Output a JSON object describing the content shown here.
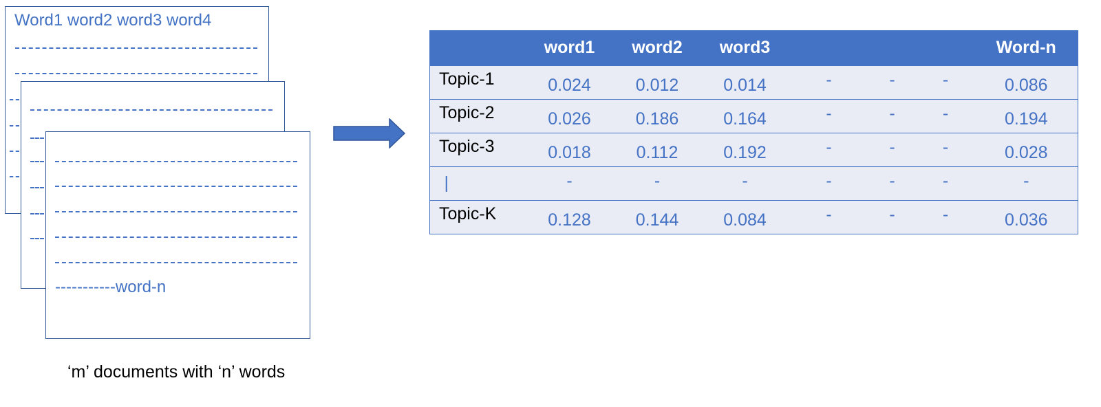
{
  "documents": {
    "first_line": "Word1 word2 word3 word4",
    "last_line_suffix": "-----------word-n",
    "caption": "‘m’ documents with ‘n’ words"
  },
  "topic_table": {
    "headers": [
      "",
      "word1",
      "word2",
      "word3",
      "",
      "",
      "",
      "Word-n"
    ],
    "rows": [
      {
        "label": "Topic-1",
        "cells": [
          "0.024",
          "0.012",
          "0.014",
          "-",
          "-",
          "-",
          "0.086"
        ]
      },
      {
        "label": "Topic-2",
        "cells": [
          "0.026",
          "0.186",
          "0.164",
          "-",
          "-",
          "-",
          "0.194"
        ]
      },
      {
        "label": "Topic-3",
        "cells": [
          "0.018",
          "0.112",
          "0.192",
          "-",
          "-",
          "-",
          "0.028"
        ]
      },
      {
        "label": "|",
        "cells": [
          "-",
          "-",
          "-",
          "-",
          "-",
          "-",
          "-"
        ]
      },
      {
        "label": "Topic-K",
        "cells": [
          "0.128",
          "0.144",
          "0.084",
          "-",
          "-",
          "-",
          "0.036"
        ]
      }
    ]
  },
  "colors": {
    "accent": "#4472c4",
    "border": "#2f5597",
    "row_fill": "#e9ecf5"
  }
}
